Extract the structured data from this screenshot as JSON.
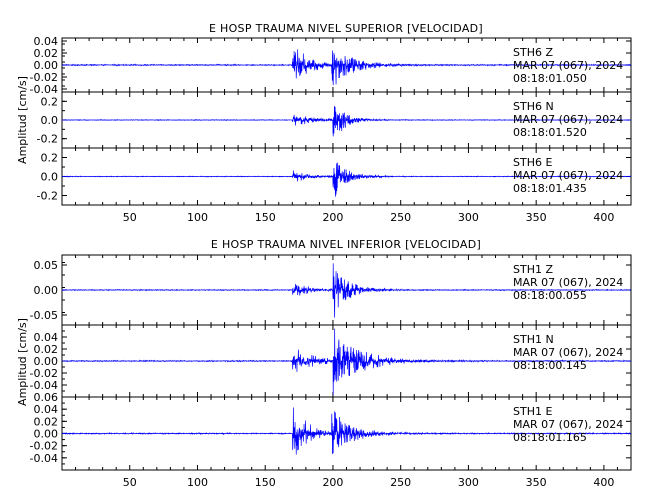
{
  "colors": {
    "trace": "#0000ff",
    "axis": "#000000",
    "background": "#ffffff"
  },
  "chart_data": [
    {
      "type": "line",
      "title": "E HOSP TRAUMA NIVEL SUPERIOR [VELOCIDAD]",
      "ylabel": "Amplitud [cm/s]",
      "xlim": [
        0,
        420
      ],
      "xticks": [
        50,
        100,
        150,
        200,
        250,
        300,
        350,
        400
      ],
      "grid": false,
      "series": [
        {
          "name": "STH6 Z",
          "annotation": [
            "STH6    Z",
            "MAR 07 (067), 2024",
            "08:18:01.050"
          ],
          "ylim": [
            -0.045,
            0.045
          ],
          "yticks": [
            0.04,
            0.02,
            0.0,
            -0.02,
            -0.04
          ],
          "ytick_labels": [
            "0.04",
            "0.02",
            "0.00",
            "-0.02",
            "-0.04"
          ],
          "noise": 0.001,
          "events": [
            {
              "t": 170,
              "amp": 0.036,
              "decay": 12
            },
            {
              "t": 199,
              "amp": 0.045,
              "decay": 14
            }
          ]
        },
        {
          "name": "STH6 N",
          "annotation": [
            "STH6    N",
            "MAR 07 (067), 2024",
            "08:18:01.520"
          ],
          "ylim": [
            -0.3,
            0.3
          ],
          "yticks": [
            0.2,
            0.0,
            -0.2
          ],
          "ytick_labels": [
            "0.2",
            "0.0",
            "-0.2"
          ],
          "noise": 0.004,
          "events": [
            {
              "t": 170,
              "amp": 0.09,
              "decay": 12
            },
            {
              "t": 200,
              "amp": 0.3,
              "decay": 8
            }
          ]
        },
        {
          "name": "STH6 E",
          "annotation": [
            "STH6    E",
            "MAR 07 (067), 2024",
            "08:18:01.435"
          ],
          "ylim": [
            -0.3,
            0.3
          ],
          "yticks": [
            0.2,
            0.0,
            -0.2
          ],
          "ytick_labels": [
            "0.2",
            "0.0",
            "-0.2"
          ],
          "noise": 0.004,
          "events": [
            {
              "t": 170,
              "amp": 0.07,
              "decay": 12
            },
            {
              "t": 200,
              "amp": 0.28,
              "decay": 9
            }
          ]
        }
      ]
    },
    {
      "type": "line",
      "title": "E HOSP TRAUMA NIVEL INFERIOR [VELOCIDAD]",
      "ylabel": "Amplitud [cm/s]",
      "xlim": [
        0,
        420
      ],
      "xticks": [
        50,
        100,
        150,
        200,
        250,
        300,
        350,
        400
      ],
      "grid": false,
      "series": [
        {
          "name": "STH1 Z",
          "annotation": [
            "STH1    Z",
            "MAR 07 (067), 2024",
            "08:18:00.055"
          ],
          "ylim": [
            -0.07,
            0.07
          ],
          "yticks": [
            0.05,
            0.0,
            -0.05
          ],
          "ytick_labels": [
            "0.05",
            "0.00",
            "-0.05"
          ],
          "noise": 0.001,
          "events": [
            {
              "t": 170,
              "amp": 0.015,
              "decay": 14
            },
            {
              "t": 200,
              "amp": 0.068,
              "decay": 10
            }
          ]
        },
        {
          "name": "STH1 N",
          "annotation": [
            "STH1    N",
            "MAR 07 (067), 2024",
            "08:18:00.145"
          ],
          "ylim": [
            -0.06,
            0.06
          ],
          "yticks": [
            0.04,
            0.02,
            0.0,
            -0.02,
            -0.04
          ],
          "ytick_labels": [
            "0.04",
            "0.02",
            "0.00",
            "-0.02",
            "-0.04"
          ],
          "noise": 0.001,
          "events": [
            {
              "t": 170,
              "amp": 0.025,
              "decay": 15
            },
            {
              "t": 200,
              "amp": 0.06,
              "decay": 18
            }
          ]
        },
        {
          "name": "STH1 E",
          "annotation": [
            "STH1    E",
            "MAR 07 (067), 2024",
            "08:18:01.165"
          ],
          "ylim": [
            -0.06,
            0.06
          ],
          "yticks": [
            0.06,
            0.04,
            0.02,
            0.0,
            -0.02,
            -0.04
          ],
          "ytick_labels": [
            "0.06",
            "0.04",
            "0.02",
            "0.00",
            "-0.02",
            "-0.04"
          ],
          "noise": 0.001,
          "events": [
            {
              "t": 170,
              "amp": 0.055,
              "decay": 10
            },
            {
              "t": 199,
              "amp": 0.045,
              "decay": 14
            }
          ]
        }
      ]
    }
  ]
}
